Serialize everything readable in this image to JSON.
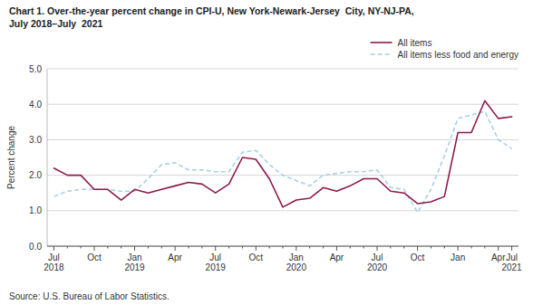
{
  "chart_data": {
    "type": "line",
    "title": "Chart 1. Over-the-year percent change in CPI-U, New York-Newark-Jersey  City, NY-NJ-PA,\nJuly 2018–July  2021",
    "ylabel": "Percent change",
    "annotations": [
      "Source: U.S. Bureau of Labor Statistics."
    ],
    "categories": [
      "Jul\n2018",
      null,
      null,
      "Oct",
      null,
      null,
      "Jan\n2019",
      null,
      null,
      "Apr",
      null,
      null,
      "Jul\n2019",
      null,
      null,
      "Oct",
      null,
      null,
      "Jan\n2020",
      null,
      null,
      "Apr",
      null,
      null,
      "Jul\n2020",
      null,
      null,
      "Oct",
      null,
      null,
      "Jan",
      null,
      null,
      "Apr",
      "Jul\n2021"
    ],
    "series": [
      {
        "name": "All items",
        "color": "#8B1A4A",
        "line_style": "solid",
        "values": [
          2.2,
          2.0,
          2.0,
          1.6,
          1.6,
          1.3,
          1.6,
          1.5,
          1.6,
          1.7,
          1.8,
          1.75,
          1.5,
          1.75,
          2.5,
          2.45,
          1.9,
          1.1,
          1.3,
          1.35,
          1.65,
          1.55,
          1.7,
          1.9,
          1.9,
          1.55,
          1.5,
          1.2,
          1.25,
          1.4,
          3.2,
          3.2,
          4.1,
          3.6,
          3.65
        ]
      },
      {
        "name": "All items less food and energy",
        "color": "#A8D0E6",
        "line_style": "dashed",
        "values": [
          1.4,
          1.55,
          1.6,
          1.6,
          1.6,
          1.55,
          1.55,
          1.9,
          2.3,
          2.35,
          2.15,
          2.15,
          2.1,
          2.1,
          2.65,
          2.7,
          2.3,
          2.0,
          1.85,
          1.7,
          2.0,
          2.05,
          2.1,
          2.1,
          2.15,
          1.65,
          1.6,
          0.95,
          1.6,
          2.55,
          3.6,
          3.7,
          3.8,
          3.0,
          2.75
        ]
      }
    ],
    "ylim": [
      0.0,
      5.0
    ],
    "yticks": [
      {
        "value": 0.0,
        "label": "0.0"
      },
      {
        "value": 1.0,
        "label": "1.0"
      },
      {
        "value": 2.0,
        "label": "2.0"
      },
      {
        "value": 3.0,
        "label": "3.0"
      },
      {
        "value": 4.0,
        "label": "4.0"
      },
      {
        "value": 5.0,
        "label": "5.0"
      }
    ],
    "grid": true,
    "legend": "upper right"
  }
}
